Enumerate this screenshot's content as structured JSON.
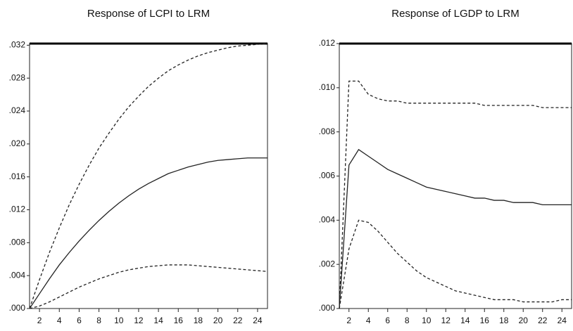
{
  "chart_data": [
    {
      "type": "line",
      "title": "Response of LCPI to LRM",
      "x": [
        1,
        2,
        3,
        4,
        5,
        6,
        7,
        8,
        9,
        10,
        11,
        12,
        13,
        14,
        15,
        16,
        17,
        18,
        19,
        20,
        21,
        22,
        23,
        24,
        25
      ],
      "xlim": [
        1,
        25
      ],
      "xticks": [
        2,
        4,
        6,
        8,
        10,
        12,
        14,
        16,
        18,
        20,
        22,
        24
      ],
      "ylim": [
        0,
        0.0322
      ],
      "yticks": [
        {
          "value": 0,
          "label": ".000"
        },
        {
          "value": 0.004,
          "label": ".004"
        },
        {
          "value": 0.008,
          "label": ".008"
        },
        {
          "value": 0.012,
          "label": ".012"
        },
        {
          "value": 0.016,
          "label": ".016"
        },
        {
          "value": 0.02,
          "label": ".020"
        },
        {
          "value": 0.024,
          "label": ".024"
        },
        {
          "value": 0.028,
          "label": ".028"
        },
        {
          "value": 0.032,
          "label": ".032"
        }
      ],
      "series": [
        {
          "color": "#222222",
          "line_style": "solid",
          "values": [
            0,
            0.0018,
            0.0036,
            0.0053,
            0.0068,
            0.0082,
            0.0095,
            0.0107,
            0.0118,
            0.0128,
            0.0137,
            0.0145,
            0.0152,
            0.0158,
            0.0164,
            0.0168,
            0.0172,
            0.0175,
            0.0178,
            0.018,
            0.0181,
            0.0182,
            0.0183,
            0.0183,
            0.0183
          ]
        },
        {
          "color": "#222222",
          "line_style": "dashed",
          "values": [
            0,
            0.0035,
            0.0068,
            0.0098,
            0.0126,
            0.0151,
            0.0174,
            0.0195,
            0.0213,
            0.023,
            0.0245,
            0.0258,
            0.027,
            0.028,
            0.0289,
            0.0296,
            0.0302,
            0.0307,
            0.0311,
            0.0314,
            0.0317,
            0.0319,
            0.032,
            0.0321,
            0.0322
          ]
        },
        {
          "color": "#222222",
          "line_style": "dashed",
          "values": [
            0,
            0.0003,
            0.0008,
            0.0014,
            0.002,
            0.0026,
            0.0031,
            0.0036,
            0.004,
            0.0044,
            0.0047,
            0.0049,
            0.0051,
            0.0052,
            0.0053,
            0.0053,
            0.0053,
            0.0052,
            0.0051,
            0.005,
            0.0049,
            0.0048,
            0.0047,
            0.0046,
            0.0045
          ]
        }
      ]
    },
    {
      "type": "line",
      "title": "Response of LGDP to LRM",
      "x": [
        1,
        2,
        3,
        4,
        5,
        6,
        7,
        8,
        9,
        10,
        11,
        12,
        13,
        14,
        15,
        16,
        17,
        18,
        19,
        20,
        21,
        22,
        23,
        24,
        25
      ],
      "xlim": [
        1,
        25
      ],
      "xticks": [
        2,
        4,
        6,
        8,
        10,
        12,
        14,
        16,
        18,
        20,
        22,
        24
      ],
      "ylim": [
        0,
        0.012
      ],
      "yticks": [
        {
          "value": 0,
          "label": ".000"
        },
        {
          "value": 0.002,
          "label": ".002"
        },
        {
          "value": 0.004,
          "label": ".004"
        },
        {
          "value": 0.006,
          "label": ".006"
        },
        {
          "value": 0.008,
          "label": ".008"
        },
        {
          "value": 0.01,
          "label": ".010"
        },
        {
          "value": 0.012,
          "label": ".012"
        }
      ],
      "series": [
        {
          "color": "#222222",
          "line_style": "solid",
          "values": [
            0,
            0.0065,
            0.0072,
            0.0069,
            0.0066,
            0.0063,
            0.0061,
            0.0059,
            0.0057,
            0.0055,
            0.0054,
            0.0053,
            0.0052,
            0.0051,
            0.005,
            0.005,
            0.0049,
            0.0049,
            0.0048,
            0.0048,
            0.0048,
            0.0047,
            0.0047,
            0.0047,
            0.0047
          ]
        },
        {
          "color": "#222222",
          "line_style": "dashed",
          "values": [
            0,
            0.0103,
            0.0103,
            0.0097,
            0.0095,
            0.0094,
            0.0094,
            0.0093,
            0.0093,
            0.0093,
            0.0093,
            0.0093,
            0.0093,
            0.0093,
            0.0093,
            0.0092,
            0.0092,
            0.0092,
            0.0092,
            0.0092,
            0.0092,
            0.0091,
            0.0091,
            0.0091,
            0.0091
          ]
        },
        {
          "color": "#222222",
          "line_style": "dashed",
          "values": [
            0,
            0.0027,
            0.004,
            0.0039,
            0.0035,
            0.003,
            0.0025,
            0.0021,
            0.0017,
            0.0014,
            0.0012,
            0.001,
            0.0008,
            0.0007,
            0.0006,
            0.0005,
            0.0004,
            0.0004,
            0.0004,
            0.0003,
            0.0003,
            0.0003,
            0.0003,
            0.0004,
            0.0004
          ]
        }
      ]
    }
  ]
}
